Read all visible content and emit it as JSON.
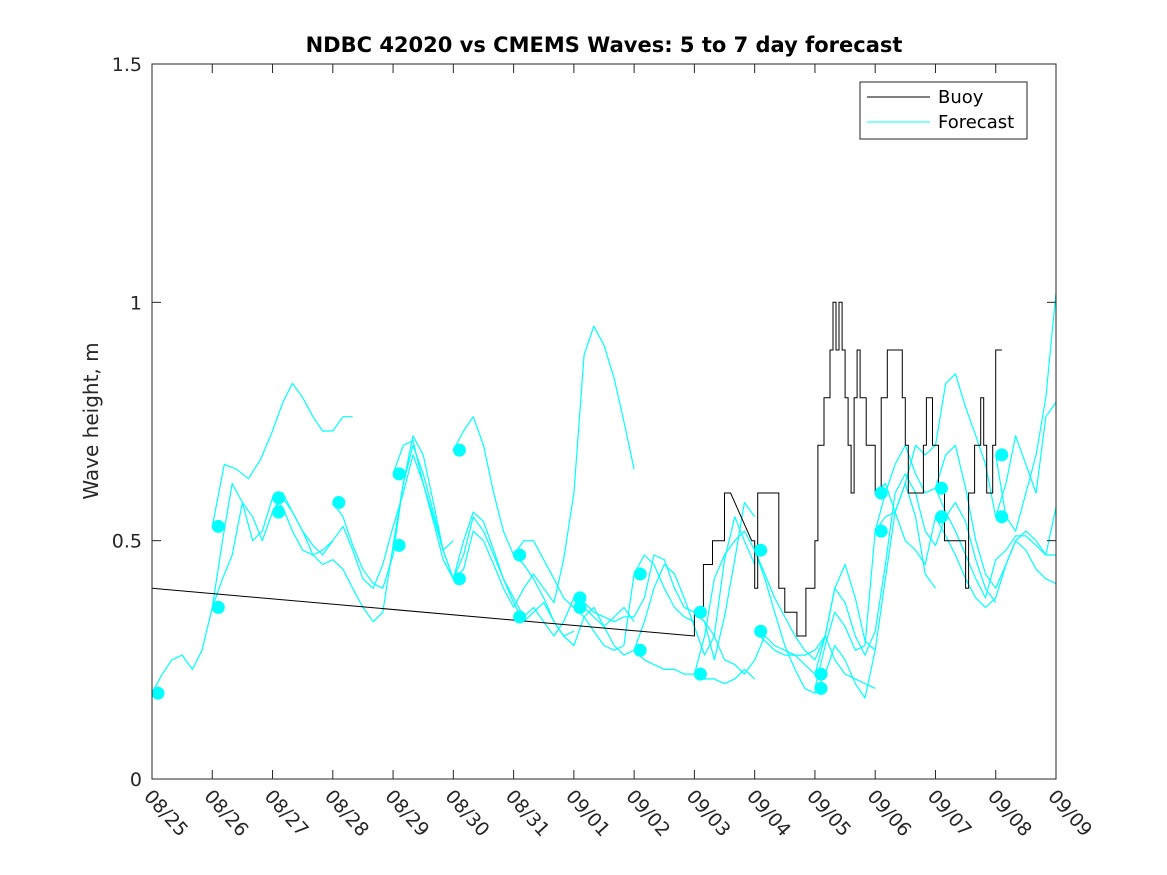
{
  "chart_data": {
    "type": "line",
    "title": "NDBC 42020 vs CMEMS Waves: 5 to 7 day forecast",
    "xlabel": "",
    "ylabel": "Wave height, m",
    "xlim": [
      0,
      15
    ],
    "ylim": [
      0,
      1.5
    ],
    "x_ticks": [
      0,
      1,
      2,
      3,
      4,
      5,
      6,
      7,
      8,
      9,
      10,
      11,
      12,
      13,
      14,
      15
    ],
    "x_tick_labels": [
      "08/25",
      "08/26",
      "08/27",
      "08/28",
      "08/29",
      "08/30",
      "08/31",
      "09/01",
      "09/02",
      "09/03",
      "09/04",
      "09/05",
      "09/06",
      "09/07",
      "09/08",
      "09/09"
    ],
    "y_ticks": [
      0,
      0.5,
      1,
      1.5
    ],
    "y_tick_labels": [
      "0",
      "0.5",
      "1",
      "1.5"
    ],
    "grid": false,
    "legend": {
      "position": "top-right",
      "entries": [
        {
          "label": "Buoy",
          "color": "#000000"
        },
        {
          "label": "Forecast",
          "color": "#00FFFF"
        }
      ]
    },
    "colors": {
      "buoy": "#000000",
      "forecast": "#00FFFF",
      "axis": "#262626"
    },
    "buoy": {
      "name": "Buoy",
      "x": [
        0,
        9.0,
        9.0,
        9.15,
        9.15,
        9.3,
        9.3,
        9.5,
        9.5,
        9.6,
        9.95,
        10.0,
        10.0,
        10.05,
        10.05,
        10.4,
        10.4,
        10.5,
        10.5,
        10.7,
        10.7,
        10.85,
        10.85,
        11.0,
        11.0,
        11.05,
        11.05,
        11.15,
        11.15,
        11.25,
        11.25,
        11.3,
        11.3,
        11.35,
        11.35,
        11.4,
        11.4,
        11.45,
        11.45,
        11.5,
        11.5,
        11.55,
        11.55,
        11.6,
        11.6,
        11.65,
        11.65,
        11.7,
        11.7,
        11.75,
        11.75,
        11.85,
        11.85,
        12.0,
        12.0,
        12.1,
        12.1,
        12.2,
        12.2,
        12.45,
        12.45,
        12.5,
        12.5,
        12.55,
        12.55,
        12.8,
        12.8,
        12.85,
        12.85,
        12.95,
        12.95,
        13.05,
        13.05,
        13.15,
        13.15,
        13.5,
        13.5,
        13.55,
        13.55,
        13.65,
        13.65,
        13.75,
        13.75,
        13.8,
        13.8,
        13.85,
        13.85,
        13.95,
        13.95,
        14.0,
        14.0,
        14.1
      ],
      "y": [
        0.4,
        0.3,
        0.35,
        0.35,
        0.45,
        0.45,
        0.5,
        0.5,
        0.6,
        0.6,
        0.5,
        0.5,
        0.4,
        0.4,
        0.6,
        0.6,
        0.4,
        0.4,
        0.35,
        0.35,
        0.3,
        0.3,
        0.4,
        0.4,
        0.5,
        0.5,
        0.7,
        0.7,
        0.8,
        0.8,
        0.9,
        0.9,
        1.0,
        1.0,
        0.9,
        0.9,
        1.0,
        1.0,
        0.9,
        0.9,
        0.8,
        0.8,
        0.7,
        0.7,
        0.6,
        0.6,
        0.8,
        0.8,
        0.9,
        0.9,
        0.8,
        0.8,
        0.7,
        0.7,
        0.6,
        0.6,
        0.8,
        0.8,
        0.9,
        0.9,
        0.8,
        0.8,
        0.7,
        0.7,
        0.6,
        0.6,
        0.7,
        0.7,
        0.8,
        0.8,
        0.7,
        0.7,
        0.6,
        0.6,
        0.5,
        0.5,
        0.4,
        0.4,
        0.6,
        0.6,
        0.7,
        0.7,
        0.8,
        0.8,
        0.7,
        0.7,
        0.6,
        0.6,
        0.7,
        0.7,
        0.9,
        0.9
      ]
    },
    "forecast_series": [
      {
        "name": "Forecast",
        "x": [
          0.0,
          0.17,
          0.33,
          0.5,
          0.67,
          0.83,
          1.0,
          1.17,
          1.33,
          1.5,
          1.67,
          1.83,
          2.0,
          2.17,
          2.33,
          2.5,
          2.67,
          2.83,
          3.0
        ],
        "y": [
          0.18,
          0.22,
          0.25,
          0.26,
          0.23,
          0.27,
          0.36,
          0.5,
          0.62,
          0.58,
          0.5,
          0.52,
          0.59,
          0.57,
          0.52,
          0.48,
          0.47,
          0.48,
          0.5
        ]
      },
      {
        "name": "Forecast",
        "x": [
          1.0,
          1.2,
          1.4,
          1.6,
          1.8,
          2.0,
          2.17,
          2.33,
          2.5,
          2.67,
          2.83,
          3.0,
          3.17,
          3.33
        ],
        "y": [
          0.53,
          0.66,
          0.65,
          0.63,
          0.67,
          0.73,
          0.79,
          0.83,
          0.8,
          0.76,
          0.73,
          0.73,
          0.76,
          0.76
        ]
      },
      {
        "name": "Forecast",
        "x": [
          1.0,
          1.17,
          1.33,
          1.5,
          1.67,
          1.83,
          2.0,
          2.17,
          2.33,
          2.5,
          2.67,
          2.83,
          3.0,
          3.17,
          3.33,
          3.5,
          3.67,
          3.83,
          4.0,
          4.17,
          4.33,
          4.5,
          4.67,
          4.83,
          5.0
        ],
        "y": [
          0.36,
          0.42,
          0.47,
          0.58,
          0.55,
          0.5,
          0.56,
          0.59,
          0.56,
          0.52,
          0.49,
          0.47,
          0.5,
          0.53,
          0.48,
          0.42,
          0.4,
          0.45,
          0.53,
          0.6,
          0.68,
          0.62,
          0.55,
          0.48,
          0.5
        ]
      },
      {
        "name": "Forecast",
        "x": [
          2.0,
          2.17,
          2.33,
          2.5,
          2.67,
          2.83,
          3.0,
          3.17,
          3.33,
          3.5,
          3.67,
          3.83,
          4.0,
          4.17,
          4.33,
          4.5,
          4.67,
          4.83,
          5.0,
          5.17,
          5.33,
          5.5,
          5.67,
          5.83,
          6.0
        ],
        "y": [
          0.56,
          0.6,
          0.56,
          0.52,
          0.47,
          0.45,
          0.46,
          0.44,
          0.4,
          0.36,
          0.33,
          0.35,
          0.49,
          0.62,
          0.7,
          0.64,
          0.56,
          0.48,
          0.42,
          0.44,
          0.52,
          0.5,
          0.45,
          0.4,
          0.36
        ]
      },
      {
        "name": "Forecast",
        "x": [
          3.0,
          3.17,
          3.33,
          3.5,
          3.67,
          3.83,
          4.0,
          4.17,
          4.33,
          4.5,
          4.67,
          4.83,
          5.0,
          5.17,
          5.33,
          5.5,
          5.67,
          5.83,
          6.0,
          6.17,
          6.33,
          6.5,
          6.67,
          6.83,
          7.0
        ],
        "y": [
          0.58,
          0.55,
          0.49,
          0.44,
          0.41,
          0.4,
          0.47,
          0.62,
          0.72,
          0.68,
          0.58,
          0.48,
          0.42,
          0.47,
          0.55,
          0.52,
          0.47,
          0.42,
          0.37,
          0.33,
          0.35,
          0.37,
          0.33,
          0.3,
          0.31
        ]
      },
      {
        "name": "Forecast",
        "x": [
          4.0,
          4.17,
          4.33,
          4.5,
          4.67,
          4.83,
          5.0,
          5.17,
          5.33,
          5.5,
          5.67,
          5.83,
          6.0,
          6.17,
          6.33,
          6.5,
          6.67,
          6.83,
          7.0,
          7.17,
          7.33,
          7.5,
          7.67,
          7.83,
          8.0
        ],
        "y": [
          0.64,
          0.7,
          0.71,
          0.62,
          0.54,
          0.46,
          0.42,
          0.5,
          0.56,
          0.54,
          0.48,
          0.42,
          0.38,
          0.34,
          0.36,
          0.33,
          0.3,
          0.33,
          0.38,
          0.36,
          0.34,
          0.32,
          0.34,
          0.36,
          0.33
        ]
      },
      {
        "name": "Forecast",
        "x": [
          5.0,
          5.17,
          5.33,
          5.5,
          5.67,
          5.83,
          6.0,
          6.17,
          6.33,
          6.5,
          6.67,
          6.83,
          7.0,
          7.17,
          7.33,
          7.5,
          7.67,
          7.83,
          8.0,
          8.17,
          8.33,
          8.5,
          8.67,
          8.83,
          9.0
        ],
        "y": [
          0.69,
          0.73,
          0.76,
          0.7,
          0.6,
          0.52,
          0.47,
          0.5,
          0.5,
          0.46,
          0.42,
          0.38,
          0.36,
          0.34,
          0.31,
          0.28,
          0.27,
          0.28,
          0.43,
          0.47,
          0.45,
          0.4,
          0.36,
          0.34,
          0.33
        ]
      },
      {
        "name": "Forecast",
        "x": [
          6.0,
          6.17,
          6.33,
          6.5,
          6.67,
          6.83,
          7.0,
          7.17,
          7.33,
          7.5,
          7.67,
          7.83,
          8.0,
          8.17,
          8.33,
          8.5,
          8.67,
          8.83,
          9.0,
          9.17,
          9.33,
          9.5,
          9.67,
          9.83,
          10.0
        ],
        "y": [
          0.47,
          0.45,
          0.42,
          0.38,
          0.33,
          0.3,
          0.28,
          0.34,
          0.36,
          0.32,
          0.28,
          0.26,
          0.27,
          0.33,
          0.4,
          0.45,
          0.43,
          0.38,
          0.32,
          0.26,
          0.3,
          0.46,
          0.55,
          0.5,
          0.45
        ]
      },
      {
        "name": "Forecast",
        "x": [
          7.0,
          7.17,
          7.33,
          7.5,
          7.67,
          7.83,
          8.0,
          8.17,
          8.33,
          8.5,
          8.67,
          8.83,
          9.0,
          9.17,
          9.33,
          9.5,
          9.67,
          9.83,
          10.0
        ],
        "y": [
          0.38,
          0.37,
          0.35,
          0.34,
          0.33,
          0.34,
          0.34,
          0.38,
          0.47,
          0.46,
          0.4,
          0.36,
          0.35,
          0.33,
          0.25,
          0.34,
          0.46,
          0.58,
          0.55
        ]
      },
      {
        "name": "Forecast",
        "x": [
          6.0,
          6.17,
          6.33,
          6.5,
          6.67,
          6.83,
          7.0,
          7.17,
          7.33,
          7.5,
          7.67,
          7.83,
          8.0
        ],
        "y": [
          0.36,
          0.4,
          0.43,
          0.4,
          0.37,
          0.46,
          0.6,
          0.89,
          0.95,
          0.91,
          0.84,
          0.75,
          0.65
        ]
      },
      {
        "name": "Forecast",
        "x": [
          8.0,
          8.17,
          8.33,
          8.5,
          8.67,
          8.83,
          9.0,
          9.17,
          9.33,
          9.5,
          9.67,
          9.83,
          10.0
        ],
        "y": [
          0.27,
          0.25,
          0.24,
          0.23,
          0.23,
          0.22,
          0.22,
          0.21,
          0.21,
          0.2,
          0.21,
          0.23,
          0.21
        ]
      },
      {
        "name": "Forecast",
        "x": [
          9.0,
          9.17,
          9.33,
          9.5,
          9.67,
          9.83,
          10.0,
          10.17,
          10.33,
          10.5,
          10.67,
          10.83,
          11.0,
          11.17,
          11.33,
          11.5,
          11.67,
          11.83,
          12.0
        ],
        "y": [
          0.22,
          0.3,
          0.42,
          0.47,
          0.5,
          0.52,
          0.48,
          0.43,
          0.38,
          0.34,
          0.3,
          0.27,
          0.25,
          0.3,
          0.4,
          0.45,
          0.38,
          0.29,
          0.27
        ]
      },
      {
        "name": "Forecast",
        "x": [
          9.0,
          9.17,
          9.33,
          9.5,
          9.67,
          9.83,
          10.0,
          10.17,
          10.33,
          10.5,
          10.67,
          10.83,
          11.0,
          11.17,
          11.33,
          11.5,
          11.67,
          11.83,
          12.0
        ],
        "y": [
          0.35,
          0.33,
          0.3,
          0.25,
          0.24,
          0.22,
          0.25,
          0.3,
          0.28,
          0.27,
          0.26,
          0.26,
          0.27,
          0.3,
          0.25,
          0.22,
          0.21,
          0.2,
          0.19
        ]
      },
      {
        "name": "Forecast",
        "x": [
          10.0,
          10.17,
          10.33,
          10.5,
          10.67,
          10.83,
          11.0,
          11.17,
          11.33,
          11.5,
          11.67,
          11.83,
          12.0,
          12.17,
          12.33,
          12.5,
          12.67,
          12.83,
          13.0
        ],
        "y": [
          0.48,
          0.42,
          0.35,
          0.28,
          0.23,
          0.19,
          0.18,
          0.22,
          0.28,
          0.25,
          0.2,
          0.17,
          0.27,
          0.42,
          0.56,
          0.62,
          0.55,
          0.43,
          0.4
        ]
      },
      {
        "name": "Forecast",
        "x": [
          10.0,
          10.17,
          10.33,
          10.5,
          10.67,
          10.83,
          11.0,
          11.17,
          11.33,
          11.5,
          11.67,
          11.83,
          12.0,
          12.17,
          12.33,
          12.5,
          12.67,
          12.83,
          13.0,
          13.17,
          13.33,
          13.5,
          13.67,
          13.83,
          14.0
        ],
        "y": [
          0.31,
          0.29,
          0.27,
          0.26,
          0.26,
          0.24,
          0.22,
          0.3,
          0.4,
          0.37,
          0.3,
          0.26,
          0.31,
          0.45,
          0.6,
          0.64,
          0.6,
          0.52,
          0.49,
          0.55,
          0.58,
          0.54,
          0.46,
          0.4,
          0.37
        ]
      },
      {
        "name": "Forecast",
        "x": [
          11.0,
          11.17,
          11.33,
          11.5,
          11.67,
          11.83,
          12.0,
          12.17,
          12.33,
          12.5,
          12.67,
          12.83,
          13.0,
          13.17,
          13.33,
          13.5,
          13.67,
          13.83,
          14.0,
          14.17,
          14.33,
          14.5,
          14.67,
          14.83,
          15.0
        ],
        "y": [
          0.19,
          0.28,
          0.35,
          0.32,
          0.27,
          0.28,
          0.52,
          0.6,
          0.66,
          0.7,
          0.64,
          0.6,
          0.61,
          0.68,
          0.7,
          0.61,
          0.5,
          0.43,
          0.4,
          0.45,
          0.5,
          0.52,
          0.5,
          0.47,
          0.47
        ]
      },
      {
        "name": "Forecast",
        "x": [
          12.0,
          12.17,
          12.33,
          12.5,
          12.67,
          12.83,
          13.0,
          13.17,
          13.33,
          13.5,
          13.67,
          13.83,
          14.0,
          14.17,
          14.33,
          14.5,
          14.67,
          14.83,
          15.0
        ],
        "y": [
          0.52,
          0.55,
          0.56,
          0.62,
          0.7,
          0.68,
          0.7,
          0.83,
          0.85,
          0.78,
          0.72,
          0.66,
          0.55,
          0.62,
          0.72,
          0.66,
          0.6,
          0.76,
          0.79
        ]
      },
      {
        "name": "Forecast",
        "x": [
          12.0,
          12.17,
          12.33,
          12.5,
          12.67,
          12.83,
          13.0,
          13.17,
          13.33,
          13.5,
          13.67,
          13.83,
          14.0,
          14.17,
          14.33,
          14.5,
          14.67,
          14.83,
          15.0
        ],
        "y": [
          0.6,
          0.62,
          0.56,
          0.5,
          0.48,
          0.45,
          0.55,
          0.51,
          0.47,
          0.42,
          0.38,
          0.36,
          0.38,
          0.45,
          0.5,
          0.48,
          0.44,
          0.42,
          0.41
        ]
      },
      {
        "name": "Forecast",
        "x": [
          13.0,
          13.17,
          13.33,
          13.5,
          13.67,
          13.83,
          14.0,
          14.17,
          14.33,
          14.5,
          14.67,
          14.83,
          15.0
        ],
        "y": [
          0.61,
          0.56,
          0.52,
          0.47,
          0.42,
          0.38,
          0.46,
          0.48,
          0.51,
          0.51,
          0.49,
          0.47,
          0.57
        ]
      },
      {
        "name": "Forecast",
        "x": [
          14.0,
          14.17,
          14.33,
          14.5,
          14.67,
          14.83,
          15.0
        ],
        "y": [
          0.68,
          0.55,
          0.52,
          0.6,
          0.68,
          0.8,
          1.02
        ]
      }
    ],
    "forecast_markers": {
      "name": "Forecast",
      "x": [
        0.1,
        1.1,
        1.1,
        2.1,
        2.1,
        3.1,
        4.1,
        4.1,
        5.1,
        5.1,
        6.1,
        6.1,
        7.1,
        7.1,
        8.1,
        8.1,
        9.1,
        9.1,
        10.1,
        10.1,
        11.1,
        11.1,
        12.1,
        12.1,
        13.1,
        13.1,
        14.1,
        14.1
      ],
      "y": [
        0.18,
        0.53,
        0.36,
        0.59,
        0.56,
        0.58,
        0.64,
        0.49,
        0.69,
        0.42,
        0.47,
        0.34,
        0.38,
        0.36,
        0.43,
        0.27,
        0.35,
        0.22,
        0.48,
        0.31,
        0.22,
        0.19,
        0.6,
        0.52,
        0.61,
        0.55,
        0.68,
        0.55
      ]
    }
  }
}
